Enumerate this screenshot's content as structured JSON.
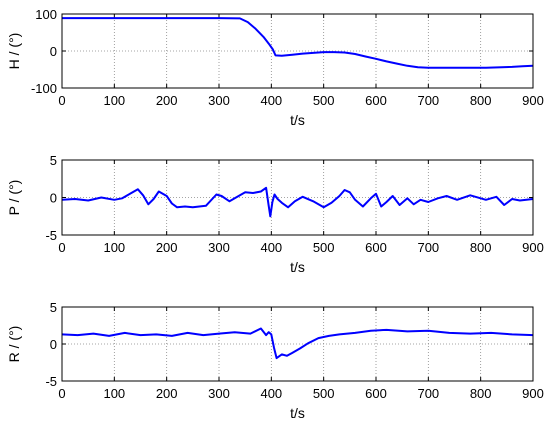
{
  "chart_data": [
    {
      "type": "line",
      "ylabel": "H / (°)",
      "xlabel": "t/s",
      "xlim": [
        0,
        900
      ],
      "ylim": [
        -100,
        100
      ],
      "xticks": [
        0,
        100,
        200,
        300,
        400,
        500,
        600,
        700,
        800,
        900
      ],
      "yticks": [
        -100,
        0,
        100
      ],
      "ytick_labels": [
        "-100",
        "0",
        "100"
      ],
      "grid": true,
      "series": [
        {
          "color": "#0000ff",
          "x": [
            0,
            50,
            100,
            150,
            200,
            250,
            300,
            340,
            355,
            370,
            385,
            395,
            403,
            408,
            420,
            440,
            460,
            480,
            500,
            520,
            540,
            560,
            580,
            600,
            620,
            640,
            660,
            680,
            700,
            720,
            750,
            780,
            810,
            840,
            860,
            880,
            900
          ],
          "y": [
            89,
            89,
            89,
            89,
            89,
            89,
            89,
            88,
            78,
            60,
            38,
            20,
            4,
            -12,
            -13,
            -10,
            -7,
            -5,
            -3,
            -3,
            -4,
            -8,
            -15,
            -21,
            -28,
            -34,
            -40,
            -44,
            -45,
            -45,
            -45,
            -45,
            -45,
            -44,
            -43,
            -41,
            -40
          ]
        }
      ]
    },
    {
      "type": "line",
      "ylabel": "P / (°)",
      "xlabel": "t/s",
      "xlim": [
        0,
        900
      ],
      "ylim": [
        -5,
        5
      ],
      "xticks": [
        0,
        100,
        200,
        300,
        400,
        500,
        600,
        700,
        800,
        900
      ],
      "yticks": [
        -5,
        0,
        5
      ],
      "ytick_labels": [
        "-5",
        "0",
        "5"
      ],
      "grid": true,
      "series": [
        {
          "color": "#0000ff",
          "x": [
            0,
            25,
            50,
            75,
            100,
            115,
            130,
            145,
            155,
            165,
            175,
            185,
            200,
            210,
            220,
            235,
            250,
            275,
            295,
            305,
            320,
            335,
            350,
            365,
            380,
            390,
            395,
            398,
            402,
            406,
            412,
            420,
            432,
            445,
            460,
            480,
            500,
            515,
            530,
            540,
            550,
            560,
            575,
            590,
            600,
            610,
            620,
            632,
            645,
            660,
            672,
            685,
            700,
            718,
            735,
            755,
            780,
            810,
            830,
            845,
            860,
            875,
            900
          ],
          "y": [
            -0.3,
            -0.2,
            -0.4,
            0.0,
            -0.3,
            -0.1,
            0.5,
            1.1,
            0.3,
            -0.9,
            -0.2,
            0.8,
            0.2,
            -0.8,
            -1.3,
            -1.2,
            -1.3,
            -1.1,
            0.4,
            0.2,
            -0.5,
            0.1,
            0.7,
            0.6,
            0.8,
            1.3,
            -1.1,
            -2.5,
            -0.6,
            0.4,
            -0.2,
            -0.7,
            -1.3,
            -0.5,
            0.1,
            -0.5,
            -1.3,
            -0.7,
            0.2,
            1.0,
            0.7,
            -0.3,
            -1.2,
            -0.1,
            0.5,
            -1.2,
            -0.6,
            0.2,
            -1.0,
            -0.1,
            -0.9,
            -0.3,
            -0.6,
            -0.1,
            0.2,
            -0.3,
            0.3,
            -0.3,
            0.1,
            -1.0,
            -0.2,
            -0.4,
            -0.2
          ]
        }
      ]
    },
    {
      "type": "line",
      "ylabel": "R / (°)",
      "xlabel": "t/s",
      "xlim": [
        0,
        900
      ],
      "ylim": [
        -5,
        5
      ],
      "xticks": [
        0,
        100,
        200,
        300,
        400,
        500,
        600,
        700,
        800,
        900
      ],
      "yticks": [
        -5,
        0,
        5
      ],
      "ytick_labels": [
        "-5",
        "0",
        "5"
      ],
      "grid": true,
      "series": [
        {
          "color": "#0000ff",
          "x": [
            0,
            30,
            60,
            90,
            120,
            150,
            180,
            210,
            240,
            270,
            300,
            330,
            360,
            380,
            390,
            395,
            400,
            405,
            410,
            420,
            430,
            440,
            455,
            470,
            490,
            510,
            530,
            560,
            590,
            620,
            660,
            700,
            740,
            780,
            820,
            860,
            900
          ],
          "y": [
            1.3,
            1.2,
            1.4,
            1.1,
            1.5,
            1.2,
            1.3,
            1.1,
            1.5,
            1.2,
            1.4,
            1.6,
            1.4,
            2.1,
            1.2,
            1.6,
            1.3,
            -0.5,
            -1.9,
            -1.4,
            -1.6,
            -1.2,
            -0.6,
            0.1,
            0.8,
            1.1,
            1.3,
            1.5,
            1.8,
            1.9,
            1.7,
            1.8,
            1.5,
            1.4,
            1.5,
            1.3,
            1.2
          ]
        }
      ]
    }
  ]
}
